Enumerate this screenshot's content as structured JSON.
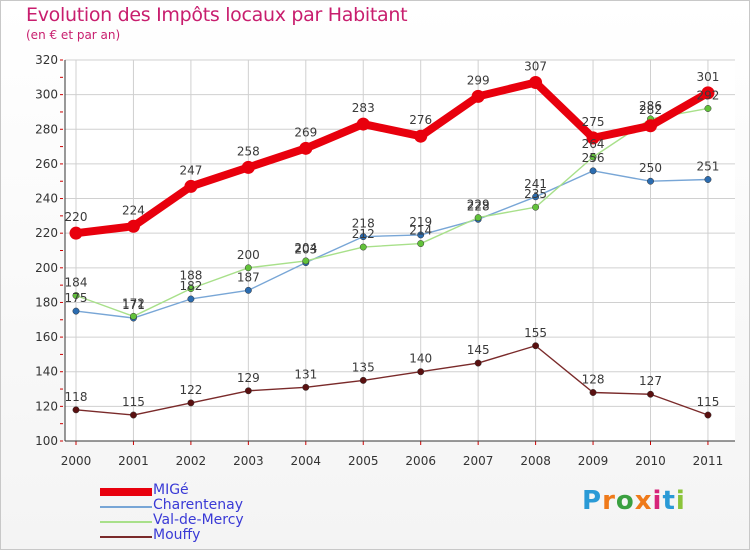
{
  "title": "Evolution des Impôts locaux par Habitant",
  "subtitle": "(en € et par an)",
  "logo": {
    "text": "Proxiti",
    "letters": [
      "P",
      "r",
      "o",
      "x",
      "i",
      "t",
      "i"
    ],
    "colors": [
      "#2a9ad6",
      "#ef7a1a",
      "#3aa040",
      "#ef7a1a",
      "#d6247a",
      "#2a9ad6",
      "#8bc43a"
    ]
  },
  "chart_data": {
    "type": "line",
    "title": "Evolution des Impôts locaux par Habitant",
    "subtitle": "(en € et par an)",
    "xlabel": "",
    "ylabel": "",
    "x": [
      "2000",
      "2001",
      "2002",
      "2003",
      "2004",
      "2005",
      "2006",
      "2007",
      "2008",
      "2009",
      "2010",
      "2011"
    ],
    "ylim": [
      100,
      320
    ],
    "yticks": [
      100,
      120,
      140,
      160,
      180,
      200,
      220,
      240,
      260,
      280,
      300,
      320
    ],
    "grid": true,
    "legend_position": "bottom-left",
    "series": [
      {
        "name": "MIGé",
        "color": "#e8000d",
        "marker_color": "#e8000d",
        "width": 8,
        "values": [
          220,
          224,
          247,
          258,
          269,
          283,
          276,
          299,
          307,
          275,
          282,
          301
        ],
        "labels": [
          "220",
          "224",
          "247",
          "258",
          "269",
          "283",
          "276",
          "299",
          "307",
          "275",
          "282",
          "301"
        ]
      },
      {
        "name": "Charentenay",
        "color": "#78a6d6",
        "marker_color": "#2b6cb0",
        "width": 1.4,
        "values": [
          175,
          171,
          182,
          187,
          203,
          218,
          219,
          228,
          241,
          256,
          250,
          251
        ],
        "labels": [
          "175",
          "171",
          "182",
          "187",
          "203",
          "218",
          "219",
          "228",
          "241",
          "256",
          "250",
          "251"
        ]
      },
      {
        "name": "Val-de-Mercy",
        "color": "#a8e08a",
        "marker_color": "#62c23a",
        "width": 1.4,
        "values": [
          184,
          172,
          188,
          200,
          204,
          212,
          214,
          229,
          235,
          264,
          286,
          292
        ],
        "labels": [
          "184",
          "172",
          "188",
          "200",
          "204",
          "212",
          "214",
          "229",
          "235",
          "264",
          "286",
          "292"
        ]
      },
      {
        "name": "Mouffy",
        "color": "#7a2a2a",
        "marker_color": "#5a1010",
        "width": 1.4,
        "values": [
          118,
          115,
          122,
          129,
          131,
          135,
          140,
          145,
          155,
          128,
          127,
          115
        ],
        "labels": [
          "118",
          "115",
          "122",
          "129",
          "131",
          "135",
          "140",
          "145",
          "155",
          "128",
          "127",
          "115"
        ]
      }
    ]
  }
}
